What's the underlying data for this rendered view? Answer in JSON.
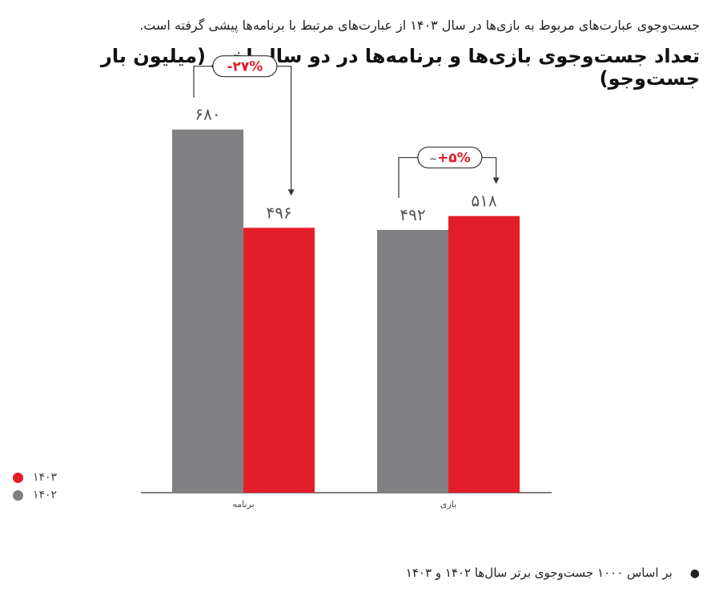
{
  "subtitle": "جست‌وجوی عبارت‌های مربوط به بازی‌ها در سال ۱۴۰۳ از عبارت‌های مرتبط با برنامه‌ها پیشی گرفته است.",
  "footnote": "بر اساس ۱۰۰۰ جست‌وجوی برتر سال‌ها ۱۴۰۲ و ۱۴۰۳",
  "colors": {
    "y1402": "#808082",
    "y1403": "#e31e2a",
    "axis": "#555555"
  },
  "chart_data": {
    "type": "bar",
    "title": "تعداد جست‌وجوی بازی‌ها و برنامه‌ها در دو سال اخیر (میلیون بار جست‌وجو)",
    "xlabel": "",
    "ylabel": "",
    "ylim": [
      0,
      750
    ],
    "grid": false,
    "legend_position": "bottom-left",
    "categories": [
      "برنامه",
      "بازی"
    ],
    "series": [
      {
        "name": "۱۴۰۲",
        "values": [
          680,
          492
        ],
        "value_labels": [
          "۶۸۰",
          "۴۹۲"
        ]
      },
      {
        "name": "۱۴۰۳",
        "values": [
          496,
          518
        ],
        "value_labels": [
          "۴۹۶",
          "۵۱۸"
        ]
      }
    ],
    "annotations": [
      {
        "category": "برنامه",
        "label": "-۲۷%"
      },
      {
        "category": "بازی",
        "label": "+۵%",
        "prefix": "~"
      }
    ]
  }
}
